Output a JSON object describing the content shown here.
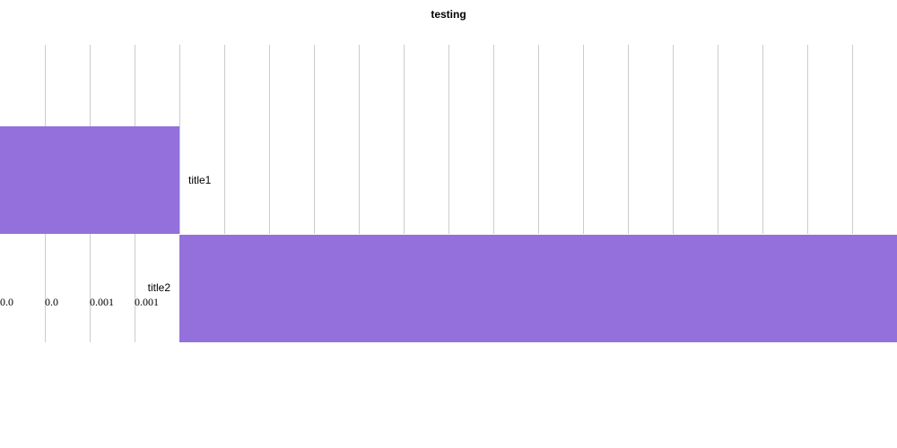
{
  "chart_data": {
    "type": "bar",
    "orientation": "horizontal",
    "title": "testing",
    "categories": [
      "title1",
      "title2"
    ],
    "values": [
      -0.0016,
      0.0064
    ],
    "bar_color": "#9370db",
    "xlim": [
      -0.0016,
      0.0064
    ],
    "x_ticks": [
      -0.0016,
      -0.0012,
      -0.0008,
      -0.0004,
      0,
      0.0004,
      0.0008,
      0.0012,
      0.0016,
      0.002,
      0.0024,
      0.0028,
      0.0032,
      0.0036,
      0.004,
      0.0044,
      0.0048,
      0.0052,
      0.0056,
      0.006
    ],
    "visible_tick_labels": [
      "0.0",
      "0.0",
      "0.001",
      "0.001"
    ],
    "grid": true,
    "legend": "none"
  }
}
